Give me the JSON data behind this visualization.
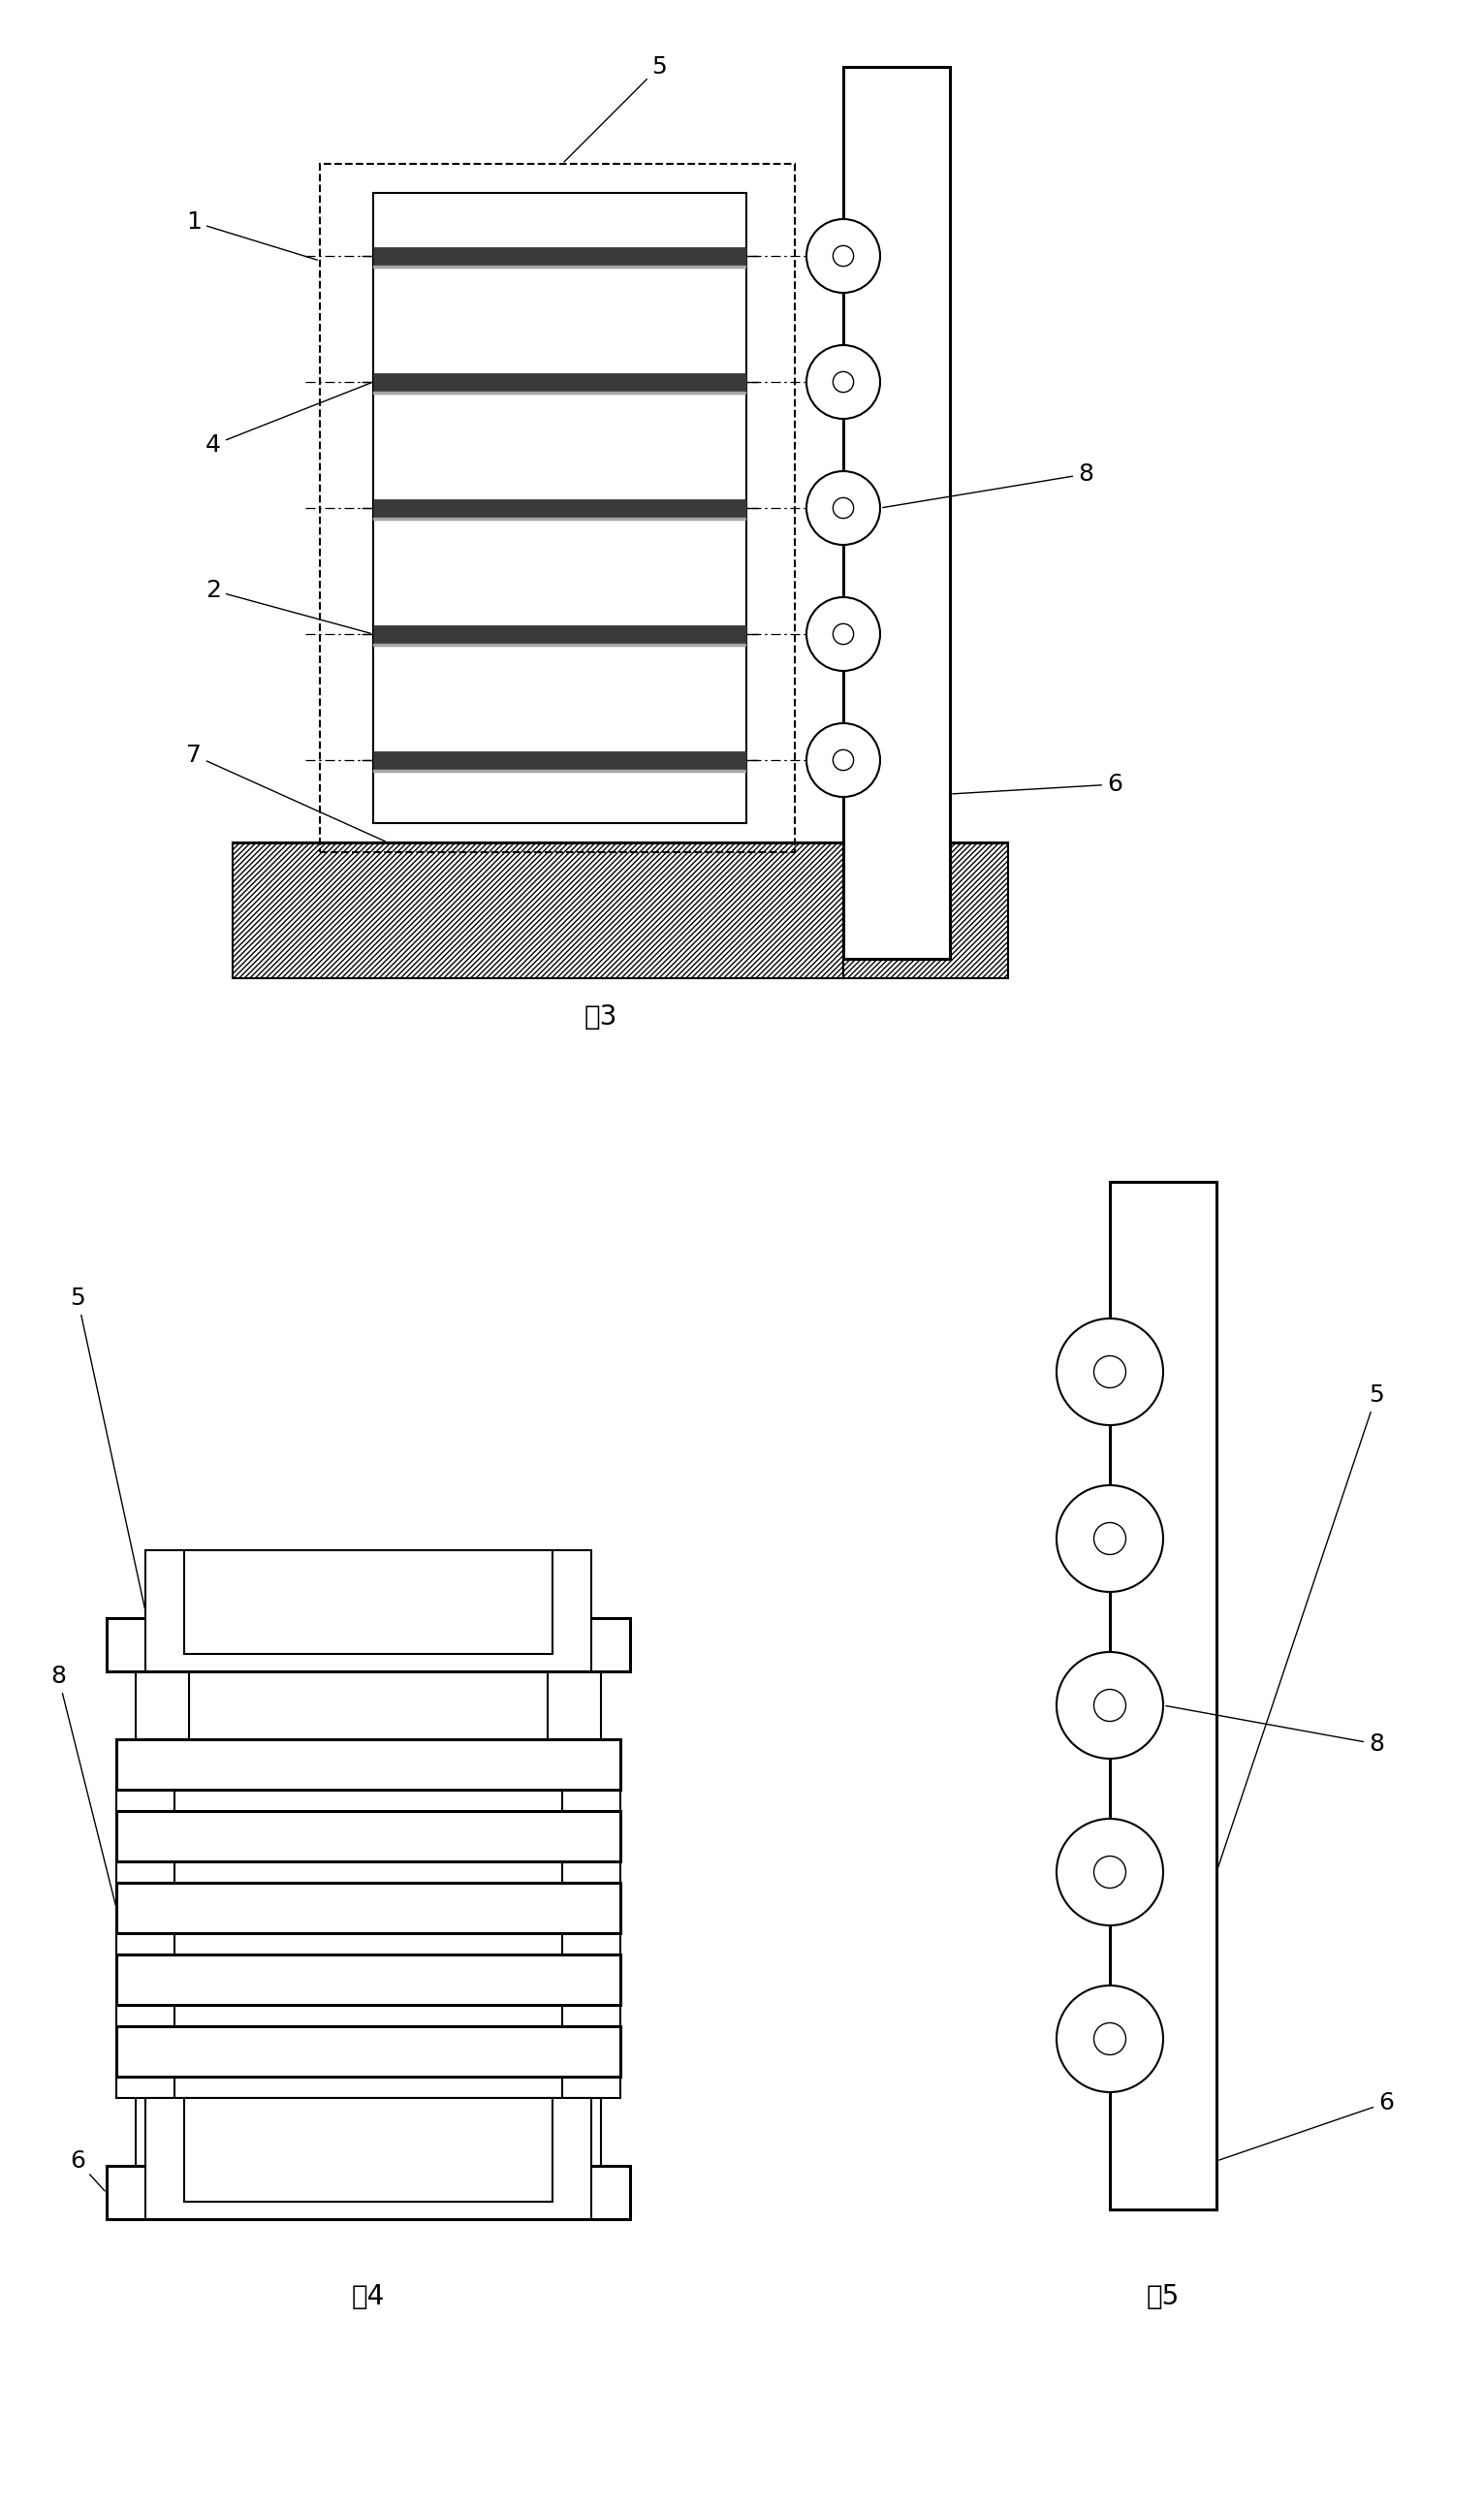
{
  "fig3_label": "图3",
  "fig4_label": "图4",
  "fig5_label": "图5",
  "background_color": "#ffffff",
  "line_color": "#000000",
  "label_fontsize": 20,
  "annotation_fontsize": 18,
  "layer_color": "#3a3a3a",
  "thin_layer_color": "#888888"
}
